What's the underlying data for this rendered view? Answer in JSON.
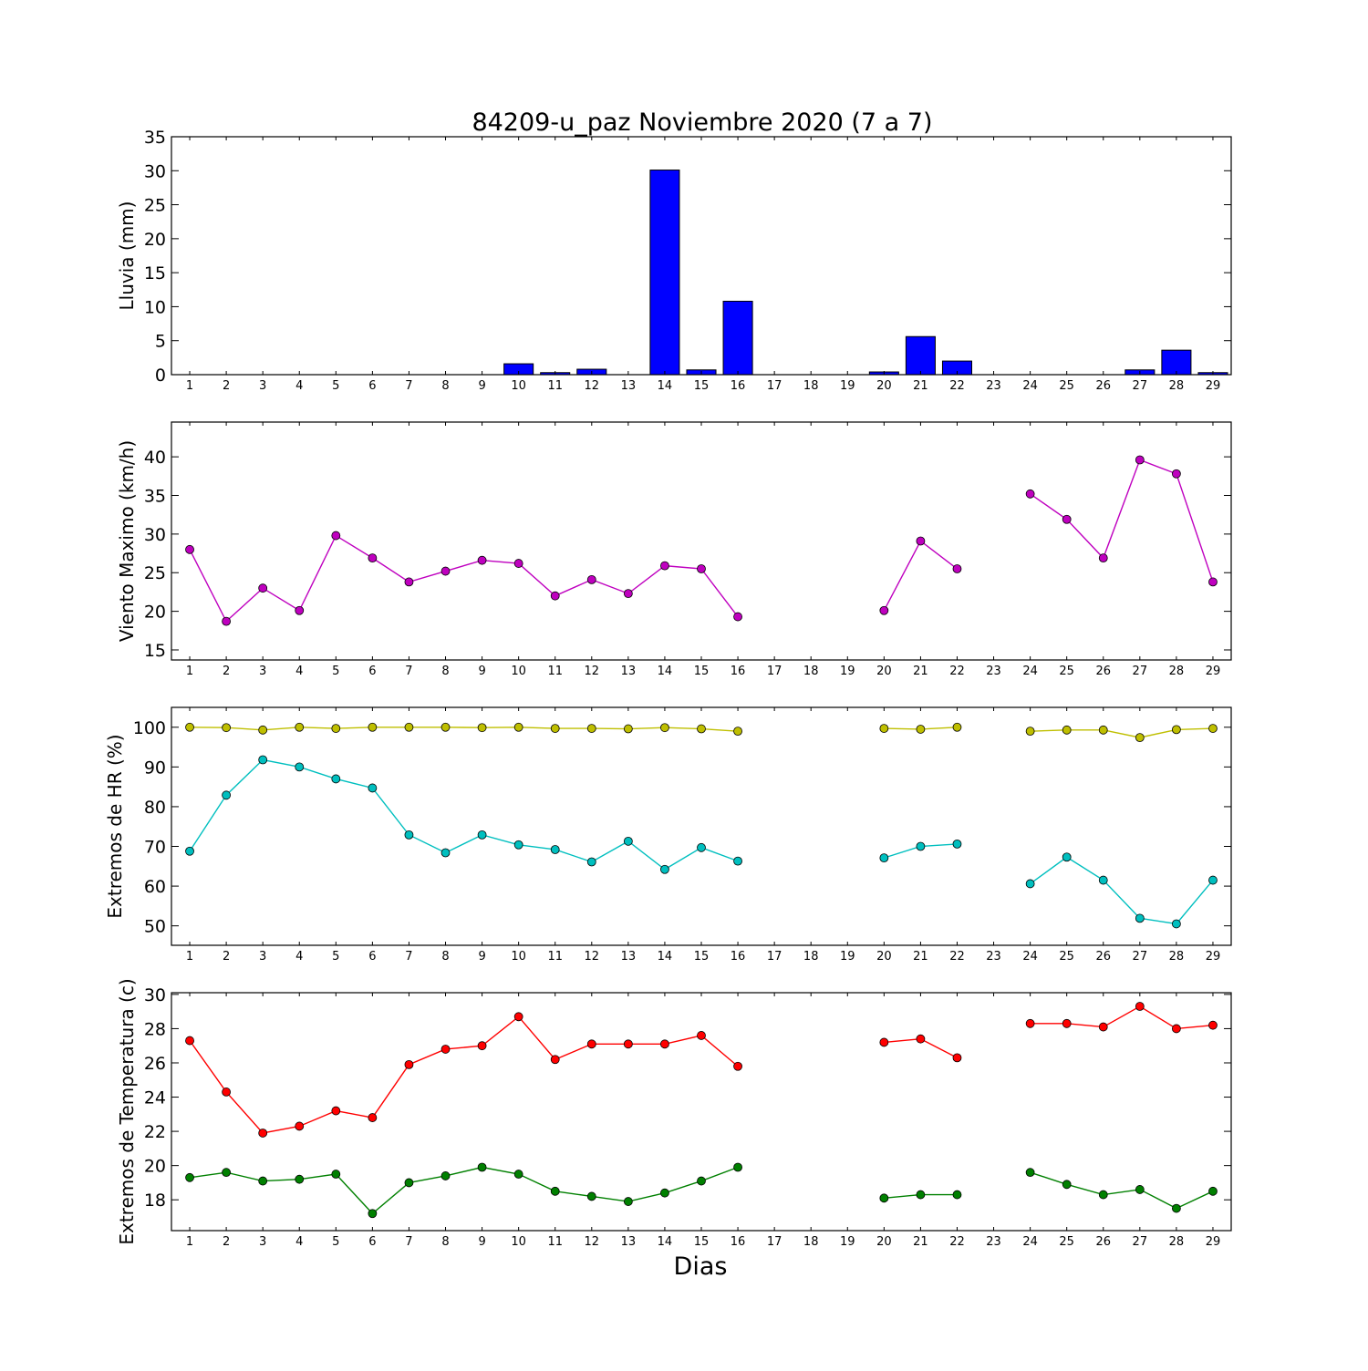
{
  "title": "84209-u_paz Noviembre 2020  (7 a 7)",
  "xlabel": "Dias",
  "colors": {
    "bar": "#0000ff",
    "wind": "#bf00bf",
    "hr_max": "#bfbf00",
    "hr_min": "#00bfbf",
    "temp_max": "#ff0000",
    "temp_min": "#008000"
  },
  "chart_data": [
    {
      "type": "bar",
      "ylabel": "Lluvia (mm)",
      "ylim": [
        0,
        35
      ],
      "yticks": [
        0,
        5,
        10,
        15,
        20,
        25,
        30,
        35
      ],
      "categories": [
        1,
        2,
        3,
        4,
        5,
        6,
        7,
        8,
        9,
        10,
        11,
        12,
        13,
        14,
        15,
        16,
        17,
        18,
        19,
        20,
        21,
        22,
        23,
        24,
        25,
        26,
        27,
        28,
        29
      ],
      "values": [
        0,
        0,
        0,
        0,
        0,
        0,
        0,
        0,
        0,
        1.6,
        0.3,
        0.8,
        0,
        30.1,
        0.7,
        10.8,
        0,
        0,
        0,
        0.4,
        5.6,
        2.0,
        0,
        0,
        0,
        0,
        0.7,
        3.6,
        0.3
      ]
    },
    {
      "type": "line",
      "ylabel": "Viento Maximo (km/h)",
      "ylim": [
        13.7,
        44.5
      ],
      "yticks": [
        15,
        20,
        25,
        30,
        35,
        40
      ],
      "x": [
        1,
        2,
        3,
        4,
        5,
        6,
        7,
        8,
        9,
        10,
        11,
        12,
        13,
        14,
        15,
        16,
        17,
        18,
        19,
        20,
        21,
        22,
        23,
        24,
        25,
        26,
        27,
        28,
        29
      ],
      "series": [
        {
          "values": [
            28.0,
            18.7,
            23.0,
            20.1,
            29.8,
            26.9,
            23.8,
            25.2,
            26.6,
            26.2,
            22.0,
            24.1,
            22.3,
            25.9,
            25.5,
            19.3,
            null,
            null,
            null,
            20.1,
            29.1,
            25.5,
            null,
            35.2,
            31.9,
            26.9,
            39.6,
            37.8,
            23.8
          ]
        }
      ]
    },
    {
      "type": "line",
      "ylabel": "Extremos de HR (%)",
      "ylim": [
        45.1,
        105
      ],
      "yticks": [
        50,
        60,
        70,
        80,
        90,
        100
      ],
      "x": [
        1,
        2,
        3,
        4,
        5,
        6,
        7,
        8,
        9,
        10,
        11,
        12,
        13,
        14,
        15,
        16,
        17,
        18,
        19,
        20,
        21,
        22,
        23,
        24,
        25,
        26,
        27,
        28,
        29
      ],
      "series": [
        {
          "values": [
            100,
            99.9,
            99.3,
            100,
            99.7,
            100,
            100,
            100,
            99.9,
            100,
            99.7,
            99.7,
            99.6,
            99.9,
            99.6,
            99.0,
            null,
            null,
            null,
            99.7,
            99.5,
            100,
            null,
            99.0,
            99.3,
            99.3,
            97.4,
            99.4,
            99.7
          ]
        },
        {
          "values": [
            68.8,
            82.9,
            91.8,
            90.0,
            87.0,
            84.7,
            72.9,
            68.4,
            72.9,
            70.4,
            69.2,
            66.1,
            71.3,
            64.2,
            69.7,
            66.3,
            null,
            null,
            null,
            67.1,
            70.0,
            70.6,
            null,
            60.6,
            67.3,
            61.5,
            51.9,
            50.5,
            61.5
          ]
        }
      ]
    },
    {
      "type": "line",
      "ylabel": "Extremos de Temperatura (c)",
      "ylim": [
        16.2,
        30.1
      ],
      "yticks": [
        18,
        20,
        22,
        24,
        26,
        28,
        30
      ],
      "x": [
        1,
        2,
        3,
        4,
        5,
        6,
        7,
        8,
        9,
        10,
        11,
        12,
        13,
        14,
        15,
        16,
        17,
        18,
        19,
        20,
        21,
        22,
        23,
        24,
        25,
        26,
        27,
        28,
        29
      ],
      "series": [
        {
          "values": [
            27.3,
            24.3,
            21.9,
            22.3,
            23.2,
            22.8,
            25.9,
            26.8,
            27.0,
            28.7,
            26.2,
            27.1,
            27.1,
            27.1,
            27.6,
            25.8,
            null,
            null,
            null,
            27.2,
            27.4,
            26.3,
            null,
            28.3,
            28.3,
            28.1,
            29.3,
            28.0,
            28.2
          ]
        },
        {
          "values": [
            19.3,
            19.6,
            19.1,
            19.2,
            19.5,
            17.2,
            19.0,
            19.4,
            19.9,
            19.5,
            18.5,
            18.2,
            17.9,
            18.4,
            19.1,
            19.9,
            null,
            null,
            null,
            18.1,
            18.3,
            18.3,
            null,
            19.6,
            18.9,
            18.3,
            18.6,
            17.5,
            18.5
          ]
        }
      ]
    }
  ]
}
